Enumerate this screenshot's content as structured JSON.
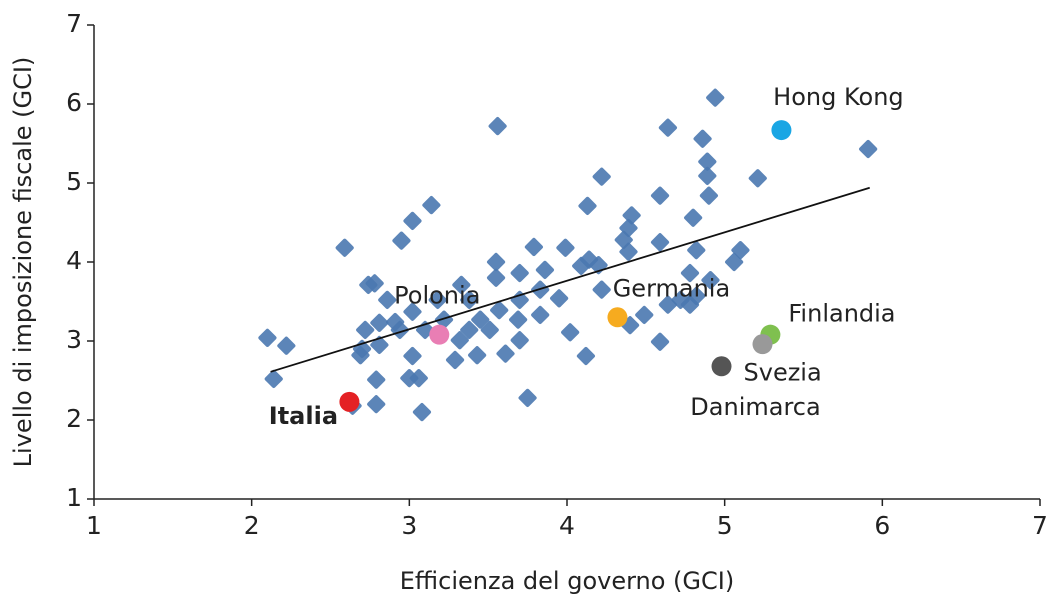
{
  "chart_data": {
    "type": "scatter",
    "xlabel": "Efficienza del governo (GCI)",
    "ylabel": "Livello di imposizione fiscale (GCI)",
    "xlim": [
      1,
      7
    ],
    "ylim": [
      1,
      7
    ],
    "xticks": [
      1,
      2,
      3,
      4,
      5,
      6,
      7
    ],
    "yticks": [
      1,
      2,
      3,
      4,
      5,
      6,
      7
    ],
    "points": {
      "color": "#4a78b0",
      "x": [
        2.1,
        2.22,
        2.14,
        2.59,
        3.02,
        3.14,
        2.95,
        3.56,
        4.94,
        4.64,
        5.91,
        4.86,
        4.89,
        4.89,
        4.9,
        5.21,
        4.22,
        4.59,
        4.13,
        4.8,
        4.41,
        4.39,
        4.36,
        4.59,
        4.82,
        5.1,
        5.06,
        4.39,
        3.99,
        3.55,
        3.79,
        3.55,
        2.78,
        2.86,
        3.02,
        3.18,
        3.33,
        3.38,
        3.45,
        3.57,
        3.7,
        3.83,
        3.95,
        3.69,
        3.83,
        3.86,
        3.7,
        4.09,
        4.14,
        4.2,
        4.22,
        4.02,
        4.12,
        3.75,
        3.08,
        3.0,
        3.06,
        3.02,
        2.81,
        2.79,
        2.79,
        2.64,
        2.7,
        2.81,
        2.91,
        2.69,
        3.29,
        3.43,
        3.32,
        3.38,
        3.61,
        4.59,
        4.4,
        4.49,
        4.64,
        4.72,
        4.78,
        4.91,
        4.82,
        4.78,
        3.51,
        3.7,
        3.22,
        3.1,
        2.94,
        2.72,
        2.74
      ],
      "y": [
        3.04,
        2.94,
        2.52,
        4.18,
        4.52,
        4.72,
        4.27,
        5.72,
        6.08,
        5.7,
        5.43,
        5.56,
        5.27,
        5.09,
        4.84,
        5.06,
        5.08,
        4.84,
        4.71,
        4.56,
        4.59,
        4.43,
        4.28,
        4.25,
        4.15,
        4.15,
        4.0,
        4.13,
        4.18,
        4.0,
        4.19,
        3.8,
        3.73,
        3.52,
        3.37,
        3.52,
        3.71,
        3.52,
        3.27,
        3.39,
        3.52,
        3.65,
        3.54,
        3.27,
        3.33,
        3.9,
        3.86,
        3.95,
        4.03,
        3.96,
        3.65,
        3.11,
        2.81,
        2.28,
        2.1,
        2.53,
        2.53,
        2.81,
        2.95,
        2.51,
        2.2,
        2.18,
        2.9,
        3.23,
        3.24,
        2.82,
        2.76,
        2.82,
        3.01,
        3.14,
        2.84,
        2.99,
        3.2,
        3.33,
        3.46,
        3.52,
        3.86,
        3.77,
        3.57,
        3.46,
        3.14,
        3.01,
        3.27,
        3.14,
        3.14,
        3.14,
        3.71
      ]
    },
    "trend": {
      "color": "#111111",
      "x": [
        2.12,
        5.92
      ],
      "y": [
        2.61,
        4.94
      ]
    },
    "highlights": [
      {
        "name": "Hong Kong",
        "color": "#1aa6e4",
        "x": 5.36,
        "y": 5.67
      },
      {
        "name": "Germania",
        "color": "#f6ab1f",
        "x": 4.32,
        "y": 3.3
      },
      {
        "name": "Polonia",
        "color": "#e97eb4",
        "x": 3.19,
        "y": 3.08
      },
      {
        "name": "Italia",
        "color": "#e42124",
        "x": 2.62,
        "y": 2.23
      },
      {
        "name": "Finlandia",
        "color": "#7fc04f",
        "x": 5.29,
        "y": 3.08
      },
      {
        "name": "Danimarca",
        "color": "#999999",
        "x": 5.24,
        "y": 2.96
      },
      {
        "name": "Svezia",
        "color": "#555555",
        "x": 4.98,
        "y": 2.68
      }
    ]
  }
}
